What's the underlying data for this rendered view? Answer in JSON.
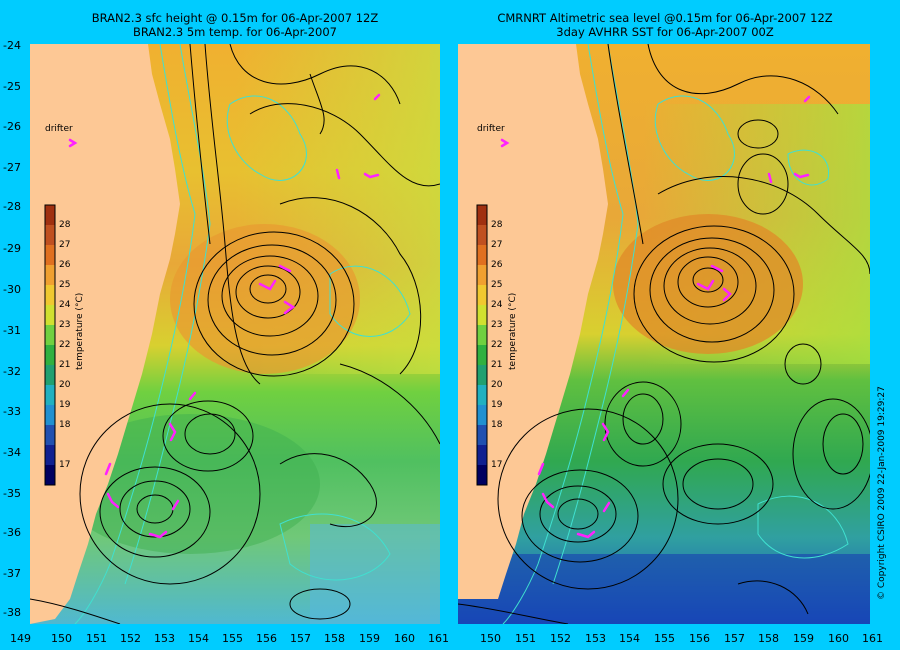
{
  "left_panel": {
    "title_line1": "BRAN2.3 sfc height @ 0.15m for 06-Apr-2007 12Z",
    "title_line2": "BRAN2.3 5m temp. for 06-Apr-2007"
  },
  "right_panel": {
    "title_line1": "CMRNRT Altimetric sea level  @0.15m  for 06-Apr-2007 12Z",
    "title_line2": "3day AVHRR SST for 06-Apr-2007 00Z"
  },
  "drifter_label": "drifter",
  "colorbar": {
    "title": "temperature (°C)",
    "ticks": [
      "28",
      "27",
      "26",
      "25",
      "24",
      "23",
      "22",
      "21",
      "20",
      "19",
      "18",
      "17"
    ]
  },
  "lat_ticks": [
    "-24",
    "-25",
    "-26",
    "-27",
    "-28",
    "-29",
    "-30",
    "-31",
    "-32",
    "-33",
    "-34",
    "-35",
    "-36",
    "-37",
    "-38"
  ],
  "lon_ticks_left": [
    "149",
    "150",
    "151",
    "152",
    "153",
    "154",
    "155",
    "156",
    "157",
    "158",
    "159",
    "160",
    "161"
  ],
  "lon_ticks_right": [
    "150",
    "151",
    "152",
    "153",
    "154",
    "155",
    "156",
    "157",
    "158",
    "159",
    "160",
    "161"
  ],
  "copyright": "© Copyright CSIRO 2009    22-Jan-2009 19:29:27",
  "colors": {
    "background": "#00CCFF",
    "land": "#FDC895",
    "contour": "#000000",
    "isobath": "#40E0D0",
    "drifter_arrow": "#FF22FF"
  },
  "map_data": {
    "lon_range": [
      149,
      161
    ],
    "lat_range": [
      -38,
      -24
    ]
  }
}
